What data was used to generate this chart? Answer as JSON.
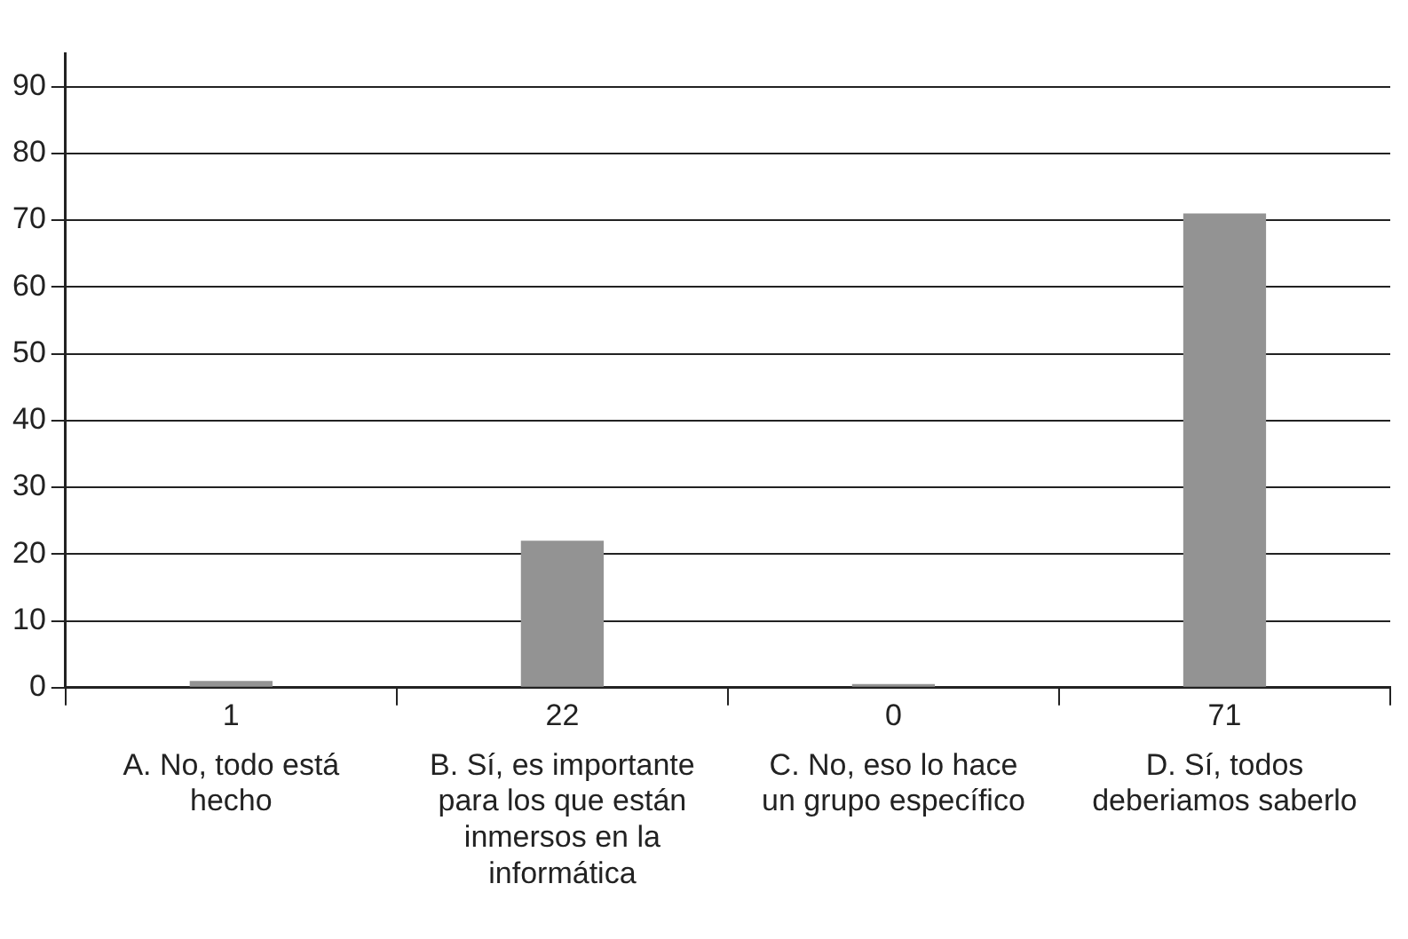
{
  "chart_data": {
    "type": "bar",
    "categories": [
      "A. No, todo está hecho",
      "B. Sí, es importante para los que están inmersos en la informática",
      "C. No, eso lo hace un grupo específico",
      "D. Sí, todos deberiamos saberlo"
    ],
    "values": [
      1,
      22,
      0,
      71
    ],
    "color": "#939393",
    "ylim": [
      0,
      95
    ],
    "yticks": [
      0,
      10,
      20,
      30,
      40,
      50,
      60,
      70,
      80,
      90
    ],
    "grid": "y",
    "data_labels": true,
    "legend": false
  }
}
